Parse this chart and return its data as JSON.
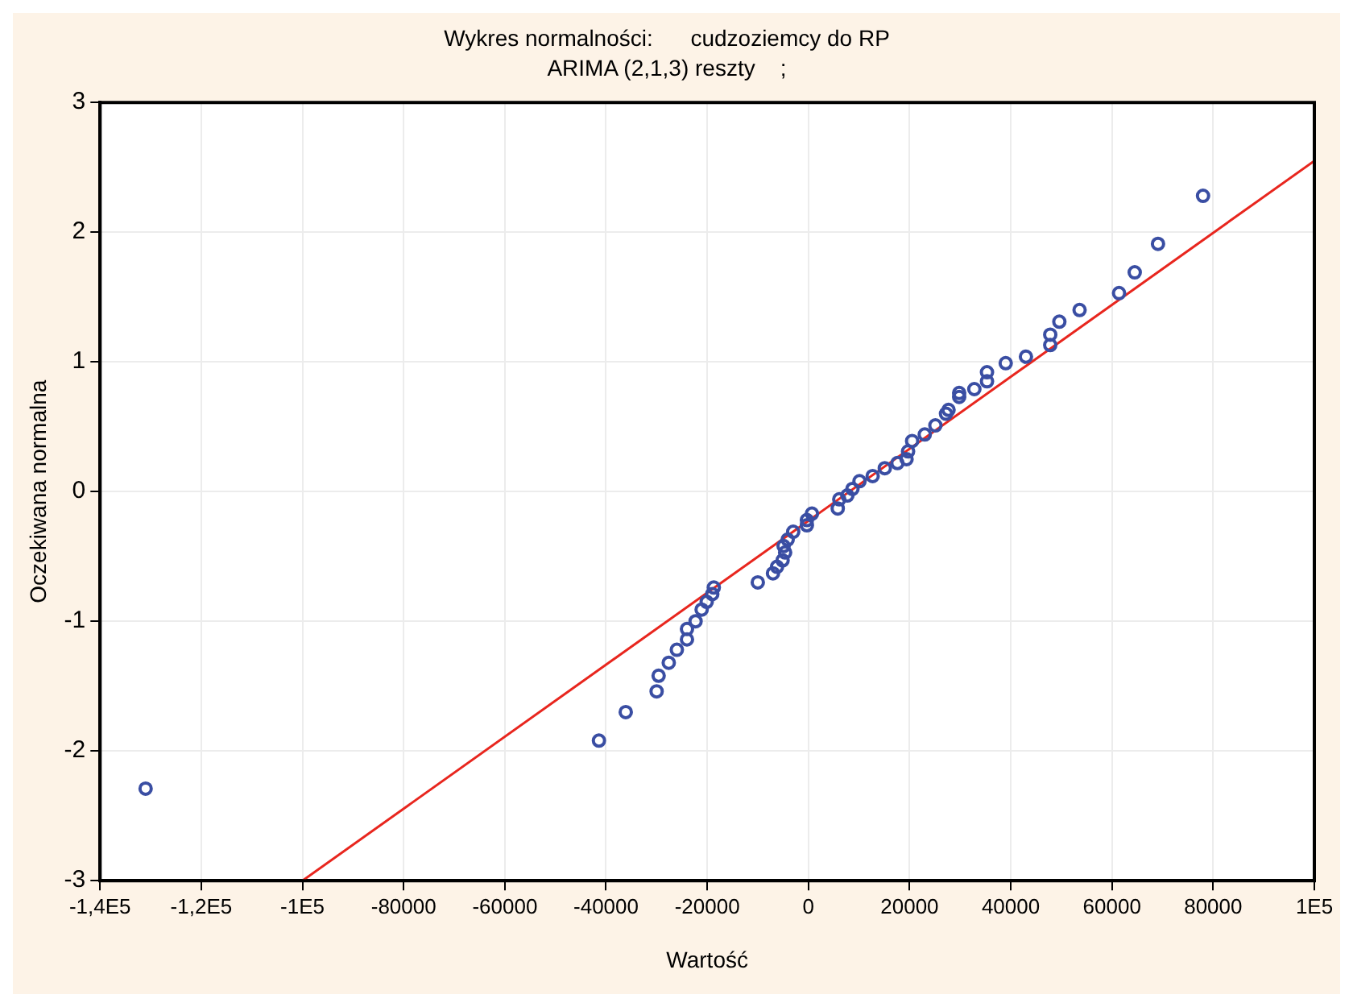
{
  "chart_data": {
    "type": "scatter",
    "title": "Wykres normalności:      cudzoziemcy do RP",
    "subtitle": "ARIMA (2,1,3) reszty    ;",
    "xlabel": "Wartość",
    "ylabel": "Oczekiwana normalna",
    "xlim": [
      -140000,
      100000
    ],
    "ylim": [
      -3,
      3
    ],
    "xticks": [
      {
        "value": -140000,
        "label": "-1,4E5"
      },
      {
        "value": -120000,
        "label": "-1,2E5"
      },
      {
        "value": -100000,
        "label": "-1E5"
      },
      -80000,
      -60000,
      -40000,
      -20000,
      0,
      20000,
      40000,
      60000,
      80000,
      {
        "value": 100000,
        "label": "1E5"
      }
    ],
    "yticks": [
      -3,
      -2,
      -1,
      0,
      1,
      2,
      3
    ],
    "grid": true,
    "legend": false,
    "series": [
      {
        "marker": "circle",
        "color": "#3a4ea3",
        "x": [
          -131000,
          -41400,
          -36100,
          -30000,
          -29600,
          -27600,
          -26000,
          -24000,
          -24000,
          -22300,
          -21100,
          -20100,
          -19000,
          -18700,
          -10000,
          -7000,
          -6200,
          -5100,
          -4600,
          -4900,
          -4100,
          -3000,
          -300,
          -300,
          700,
          5800,
          6100,
          7700,
          8700,
          10100,
          12700,
          15100,
          17600,
          19400,
          19700,
          20500,
          23000,
          25100,
          27200,
          27700,
          29800,
          29800,
          32800,
          35300,
          35300,
          39000,
          43000,
          47800,
          47800,
          49600,
          53600,
          61400,
          64500,
          69100,
          78000
        ],
        "values": [
          -2.29,
          -1.92,
          -1.7,
          -1.54,
          -1.42,
          -1.32,
          -1.22,
          -1.14,
          -1.06,
          -1.0,
          -0.91,
          -0.85,
          -0.79,
          -0.74,
          -0.7,
          -0.63,
          -0.58,
          -0.53,
          -0.47,
          -0.42,
          -0.37,
          -0.31,
          -0.26,
          -0.22,
          -0.17,
          -0.13,
          -0.06,
          -0.03,
          0.02,
          0.08,
          0.12,
          0.18,
          0.22,
          0.25,
          0.31,
          0.39,
          0.44,
          0.51,
          0.6,
          0.63,
          0.73,
          0.76,
          0.79,
          0.85,
          0.92,
          0.99,
          1.04,
          1.13,
          1.21,
          1.31,
          1.4,
          1.53,
          1.69,
          1.91,
          2.28
        ]
      },
      {
        "type": "line",
        "marker": "none",
        "line_style": "solid",
        "color": "#e8261e",
        "x": [
          -100000,
          100000
        ],
        "values": [
          -3,
          2.55
        ]
      }
    ]
  }
}
